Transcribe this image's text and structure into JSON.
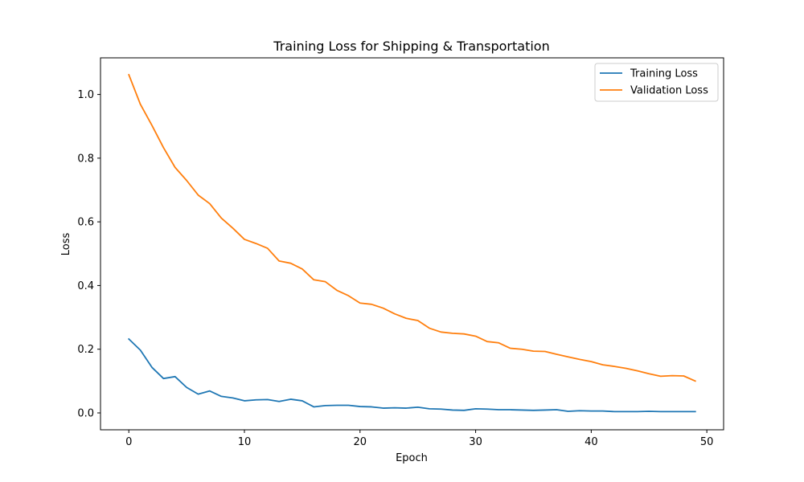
{
  "chart_data": {
    "type": "line",
    "title": "Training Loss for Shipping & Transportation",
    "xlabel": "Epoch",
    "ylabel": "Loss",
    "xlim": [
      -2.45,
      51.45
    ],
    "ylim": [
      -0.053,
      1.115
    ],
    "xticks": [
      0,
      10,
      20,
      30,
      40,
      50
    ],
    "yticks": [
      0.0,
      0.2,
      0.4,
      0.6,
      0.8,
      1.0
    ],
    "grid": false,
    "legend_position": "top-right",
    "x": [
      0,
      1,
      2,
      3,
      4,
      5,
      6,
      7,
      8,
      9,
      10,
      11,
      12,
      13,
      14,
      15,
      16,
      17,
      18,
      19,
      20,
      21,
      22,
      23,
      24,
      25,
      26,
      27,
      28,
      29,
      30,
      31,
      32,
      33,
      34,
      35,
      36,
      37,
      38,
      39,
      40,
      41,
      42,
      43,
      44,
      45,
      46,
      47,
      48,
      49
    ],
    "series": [
      {
        "name": "Training Loss",
        "color": "#1f77b4",
        "values": [
          0.232,
          0.197,
          0.143,
          0.108,
          0.114,
          0.08,
          0.059,
          0.069,
          0.052,
          0.047,
          0.038,
          0.041,
          0.042,
          0.036,
          0.043,
          0.038,
          0.019,
          0.023,
          0.024,
          0.024,
          0.02,
          0.019,
          0.015,
          0.016,
          0.015,
          0.018,
          0.013,
          0.012,
          0.009,
          0.008,
          0.013,
          0.012,
          0.01,
          0.01,
          0.009,
          0.008,
          0.009,
          0.01,
          0.005,
          0.007,
          0.006,
          0.006,
          0.004,
          0.004,
          0.004,
          0.005,
          0.004,
          0.004,
          0.004,
          0.004
        ]
      },
      {
        "name": "Validation Loss",
        "color": "#ff7f0e",
        "values": [
          1.062,
          0.969,
          0.903,
          0.833,
          0.771,
          0.73,
          0.684,
          0.657,
          0.612,
          0.58,
          0.545,
          0.532,
          0.517,
          0.477,
          0.47,
          0.452,
          0.418,
          0.412,
          0.385,
          0.368,
          0.345,
          0.341,
          0.329,
          0.311,
          0.297,
          0.29,
          0.266,
          0.254,
          0.25,
          0.248,
          0.241,
          0.224,
          0.22,
          0.203,
          0.2,
          0.194,
          0.193,
          0.184,
          0.176,
          0.168,
          0.161,
          0.151,
          0.146,
          0.14,
          0.132,
          0.123,
          0.115,
          0.117,
          0.116,
          0.1
        ]
      }
    ]
  }
}
